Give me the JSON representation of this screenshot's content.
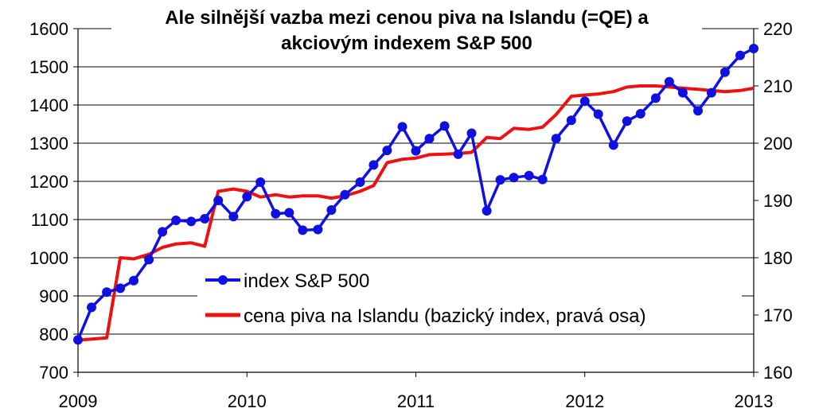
{
  "chart_data": {
    "type": "line",
    "title_lines": [
      "Ale silnější vazba mezi cenou piva na Islandu (=QE) a",
      "akciovým indexem S&P 500"
    ],
    "x_range": [
      2009,
      2013
    ],
    "x_ticks": [
      "2009",
      "2010",
      "2011",
      "2012",
      "2013"
    ],
    "y_left": {
      "range": [
        700,
        1600
      ],
      "ticks": [
        "700",
        "800",
        "900",
        "1000",
        "1100",
        "1200",
        "1300",
        "1400",
        "1500",
        "1600"
      ]
    },
    "y_right": {
      "range": [
        160,
        220
      ],
      "ticks": [
        "160",
        "170",
        "180",
        "190",
        "200",
        "210",
        "220"
      ]
    },
    "grid": "horizontal",
    "legend_position": "lower-center",
    "series": [
      {
        "name": "index S&P 500",
        "axis": "left",
        "color": "#1010e0",
        "marker": "circle",
        "x": [
          2009.0,
          2009.08,
          2009.17,
          2009.25,
          2009.33,
          2009.42,
          2009.5,
          2009.58,
          2009.67,
          2009.75,
          2009.83,
          2009.92,
          2010.0,
          2010.08,
          2010.17,
          2010.25,
          2010.33,
          2010.42,
          2010.5,
          2010.58,
          2010.67,
          2010.75,
          2010.83,
          2010.92,
          2011.0,
          2011.08,
          2011.17,
          2011.25,
          2011.33,
          2011.42,
          2011.5,
          2011.58,
          2011.67,
          2011.75,
          2011.83,
          2011.92,
          2012.0,
          2012.08,
          2012.17,
          2012.25,
          2012.33,
          2012.42,
          2012.5,
          2012.58,
          2012.67,
          2012.75,
          2012.83,
          2012.92,
          2013.0
        ],
        "values": [
          785,
          870,
          910,
          920,
          940,
          995,
          1068,
          1098,
          1095,
          1102,
          1150,
          1108,
          1160,
          1198,
          1115,
          1118,
          1072,
          1074,
          1125,
          1165,
          1198,
          1243,
          1281,
          1343,
          1280,
          1312,
          1345,
          1271,
          1326,
          1123,
          1204,
          1210,
          1215,
          1205,
          1312,
          1360,
          1410,
          1376,
          1295,
          1358,
          1377,
          1418,
          1461,
          1432,
          1385,
          1432,
          1486,
          1530,
          1548
        ]
      },
      {
        "name": "cena piva na Islandu (bazický index, pravá osa)",
        "axis": "right",
        "color": "#ee1111",
        "marker": "none",
        "x": [
          2009.0,
          2009.08,
          2009.17,
          2009.25,
          2009.33,
          2009.42,
          2009.5,
          2009.58,
          2009.67,
          2009.75,
          2009.83,
          2009.92,
          2010.0,
          2010.08,
          2010.17,
          2010.25,
          2010.33,
          2010.42,
          2010.5,
          2010.58,
          2010.67,
          2010.75,
          2010.83,
          2010.92,
          2011.0,
          2011.08,
          2011.17,
          2011.25,
          2011.33,
          2011.42,
          2011.5,
          2011.58,
          2011.67,
          2011.75,
          2011.83,
          2011.92,
          2012.0,
          2012.08,
          2012.17,
          2012.25,
          2012.33,
          2012.42,
          2012.5,
          2012.58,
          2012.67,
          2012.75,
          2012.83,
          2012.92,
          2013.0
        ],
        "values": [
          165.6,
          165.8,
          166.0,
          180.0,
          179.8,
          180.6,
          181.8,
          182.4,
          182.6,
          182.0,
          191.6,
          192.0,
          191.6,
          190.6,
          191.0,
          190.6,
          190.8,
          190.8,
          190.4,
          190.8,
          191.6,
          192.6,
          196.6,
          197.2,
          197.4,
          198.0,
          198.1,
          198.2,
          198.4,
          201.0,
          200.8,
          202.6,
          202.4,
          202.8,
          205.0,
          208.2,
          208.4,
          208.6,
          209.0,
          209.8,
          210.0,
          210.0,
          209.8,
          209.6,
          209.4,
          209.2,
          209.0,
          209.2,
          209.6
        ]
      }
    ]
  }
}
